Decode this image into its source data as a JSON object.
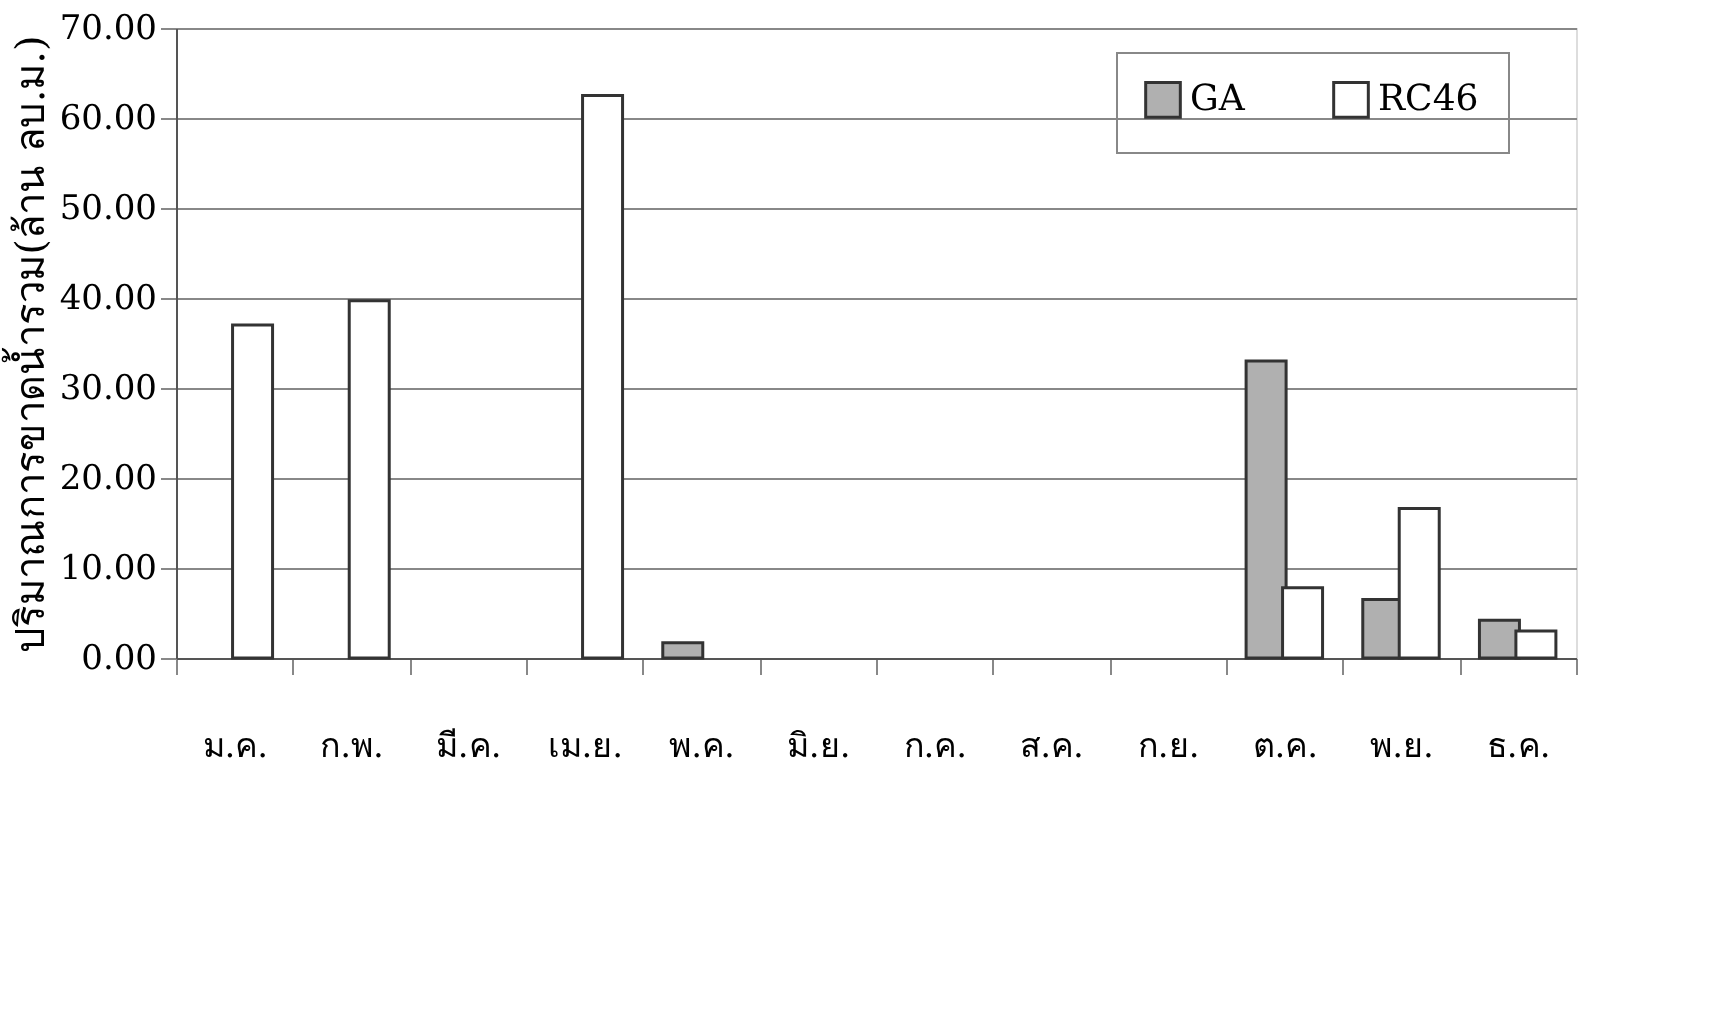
{
  "chart_data": {
    "type": "bar",
    "ylabel": "ปริมาณการขาดน้ำรวม(ล้าน ลบ.ม.)",
    "categories": [
      "ม.ค.",
      "ก.พ.",
      "มี.ค.",
      "เม.ย.",
      "พ.ค.",
      "มิ.ย.",
      "ก.ค.",
      "ส.ค.",
      "ก.ย.",
      "ต.ค.",
      "พ.ย.",
      "ธ.ค."
    ],
    "series": [
      {
        "name": "GA",
        "color": "#b0b0b0",
        "values": [
          null,
          null,
          null,
          null,
          1.7,
          null,
          null,
          null,
          null,
          33.0,
          6.5,
          4.2
        ]
      },
      {
        "name": "RC46",
        "color": "#ffffff",
        "values": [
          37.0,
          39.7,
          null,
          62.5,
          null,
          null,
          null,
          null,
          null,
          7.8,
          16.6,
          3.0
        ]
      }
    ],
    "ylim": [
      0,
      70
    ],
    "yticks": [
      {
        "value": 0,
        "label": "0.00"
      },
      {
        "value": 10,
        "label": "10.00"
      },
      {
        "value": 20,
        "label": "20.00"
      },
      {
        "value": 30,
        "label": "30.00"
      },
      {
        "value": 40,
        "label": "40.00"
      },
      {
        "value": 50,
        "label": "50.00"
      },
      {
        "value": 60,
        "label": "60.00"
      },
      {
        "value": 70,
        "label": "70.00"
      }
    ],
    "grid": "y",
    "legend": "top"
  }
}
